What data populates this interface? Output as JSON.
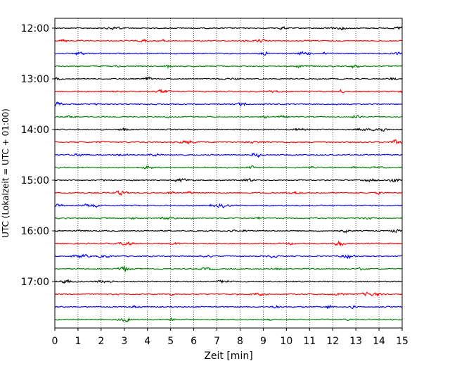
{
  "chart_data": {
    "type": "line",
    "title": "",
    "xlabel": "Zeit  [min]",
    "ylabel": "UTC (Lokalzeit = UTC + 01:00)",
    "xlim": [
      0,
      15
    ],
    "x_ticks": [
      0,
      1,
      2,
      3,
      4,
      5,
      6,
      7,
      8,
      9,
      10,
      11,
      12,
      13,
      14,
      15
    ],
    "x_tick_labels": [
      "0",
      "1",
      "2",
      "3",
      "4",
      "5",
      "6",
      "7",
      "8",
      "9",
      "10",
      "11",
      "12",
      "13",
      "14",
      "15"
    ],
    "y_tick_labels": [
      "12:00",
      "13:00",
      "14:00",
      "15:00",
      "16:00",
      "17:00"
    ],
    "trace_start": "12:00",
    "trace_interval_minutes": 15,
    "trace_count": 24,
    "trace_colors": [
      "#000000",
      "#ff0000",
      "#0000ff",
      "#008000"
    ],
    "grid": "vertical dotted lines at each minute",
    "legend": "none"
  }
}
